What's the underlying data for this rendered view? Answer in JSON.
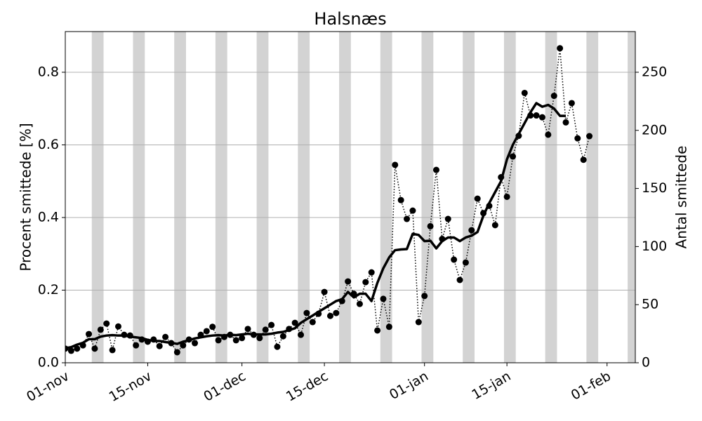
{
  "chart_data": {
    "type": "line",
    "title": "Halsnæs",
    "ylabel": "Procent smittede [%]",
    "y2label": "Antal smittede",
    "x": [
      0,
      1,
      2,
      3,
      4,
      5,
      6,
      7,
      8,
      9,
      10,
      11,
      12,
      13,
      14,
      15,
      16,
      17,
      18,
      19,
      20,
      21,
      22,
      23,
      24,
      25,
      26,
      27,
      28,
      29,
      30,
      31,
      32,
      33,
      34,
      35,
      36,
      37,
      38,
      39,
      40,
      41,
      42,
      43,
      44,
      45,
      46,
      47,
      48,
      49,
      50,
      51,
      52,
      53,
      54,
      55,
      56,
      57,
      58,
      59,
      60,
      61,
      62,
      63,
      64,
      65,
      66,
      67,
      68,
      69,
      70,
      71,
      72,
      73,
      74,
      75,
      76,
      77,
      78,
      79,
      80,
      81,
      82,
      83,
      84,
      85,
      86,
      87,
      88,
      89
    ],
    "series": [
      {
        "color": "#000000",
        "line": "dotted",
        "marker": "circle",
        "values": [
          0.039,
          0.033,
          0.039,
          0.048,
          0.079,
          0.039,
          0.091,
          0.108,
          0.035,
          0.1,
          0.077,
          0.075,
          0.048,
          0.064,
          0.058,
          0.064,
          0.046,
          0.071,
          0.054,
          0.029,
          0.048,
          0.064,
          0.054,
          0.077,
          0.087,
          0.099,
          0.062,
          0.071,
          0.077,
          0.062,
          0.068,
          0.093,
          0.077,
          0.068,
          0.091,
          0.104,
          0.044,
          0.073,
          0.093,
          0.11,
          0.077,
          0.137,
          0.112,
          0.135,
          0.195,
          0.129,
          0.137,
          0.17,
          0.224,
          0.19,
          0.162,
          0.222,
          0.249,
          0.089,
          0.176,
          0.099,
          0.545,
          0.448,
          0.396,
          0.419,
          0.112,
          0.184,
          0.376,
          0.531,
          0.341,
          0.396,
          0.284,
          0.228,
          0.276,
          0.365,
          0.452,
          0.412,
          0.432,
          0.379,
          0.511,
          0.457,
          0.568,
          0.625,
          0.743,
          0.681,
          0.681,
          0.676,
          0.628,
          0.735,
          0.866,
          0.662,
          0.715,
          0.618,
          0.559,
          0.624
        ]
      },
      {
        "color": "#000000",
        "line": "solid",
        "marker": "none",
        "values": [
          0.04,
          0.043,
          0.05,
          0.055,
          0.065,
          0.065,
          0.072,
          0.075,
          0.076,
          0.075,
          0.075,
          0.072,
          0.07,
          0.068,
          0.063,
          0.06,
          0.06,
          0.057,
          0.055,
          0.052,
          0.058,
          0.062,
          0.067,
          0.07,
          0.073,
          0.075,
          0.076,
          0.075,
          0.077,
          0.076,
          0.078,
          0.08,
          0.078,
          0.078,
          0.078,
          0.08,
          0.083,
          0.085,
          0.09,
          0.095,
          0.11,
          0.12,
          0.13,
          0.14,
          0.15,
          0.16,
          0.17,
          0.175,
          0.195,
          0.18,
          0.19,
          0.19,
          0.17,
          0.22,
          0.26,
          0.29,
          0.31,
          0.312,
          0.313,
          0.355,
          0.352,
          0.335,
          0.336,
          0.315,
          0.335,
          0.345,
          0.345,
          0.335,
          0.345,
          0.35,
          0.36,
          0.405,
          0.44,
          0.47,
          0.5,
          0.56,
          0.6,
          0.63,
          0.66,
          0.69,
          0.715,
          0.705,
          0.71,
          0.7,
          0.68,
          0.68,
          null,
          null,
          null,
          null
        ]
      }
    ],
    "bands": [
      [
        4.5,
        6.5
      ],
      [
        11.5,
        13.5
      ],
      [
        18.5,
        20.5
      ],
      [
        25.5,
        27.5
      ],
      [
        32.5,
        34.5
      ],
      [
        39.5,
        41.5
      ],
      [
        46.5,
        48.5
      ],
      [
        53.5,
        55.5
      ],
      [
        60.5,
        62.5
      ],
      [
        67.5,
        69.5
      ],
      [
        74.5,
        76.5
      ],
      [
        81.5,
        83.5
      ],
      [
        88.5,
        90.5
      ],
      [
        95.5,
        97.5
      ]
    ],
    "band_color": "#d3d3d3",
    "xlim": [
      0,
      96.8
    ],
    "xticks": [
      {
        "value": 0,
        "label": "01-nov"
      },
      {
        "value": 14,
        "label": "15-nov"
      },
      {
        "value": 30,
        "label": "01-dec"
      },
      {
        "value": 44,
        "label": "15-dec"
      },
      {
        "value": 61,
        "label": "01-jan"
      },
      {
        "value": 75,
        "label": "15-jan"
      },
      {
        "value": 92,
        "label": "01-feb"
      }
    ],
    "ylim": [
      0,
      0.912
    ],
    "yticks": [
      {
        "value": 0,
        "label": "0.0"
      },
      0.2,
      0.4,
      0.6,
      0.8
    ],
    "y2lim": [
      0,
      285
    ],
    "y2ticks": [
      0,
      50,
      100,
      150,
      200,
      250
    ],
    "grid": true
  }
}
